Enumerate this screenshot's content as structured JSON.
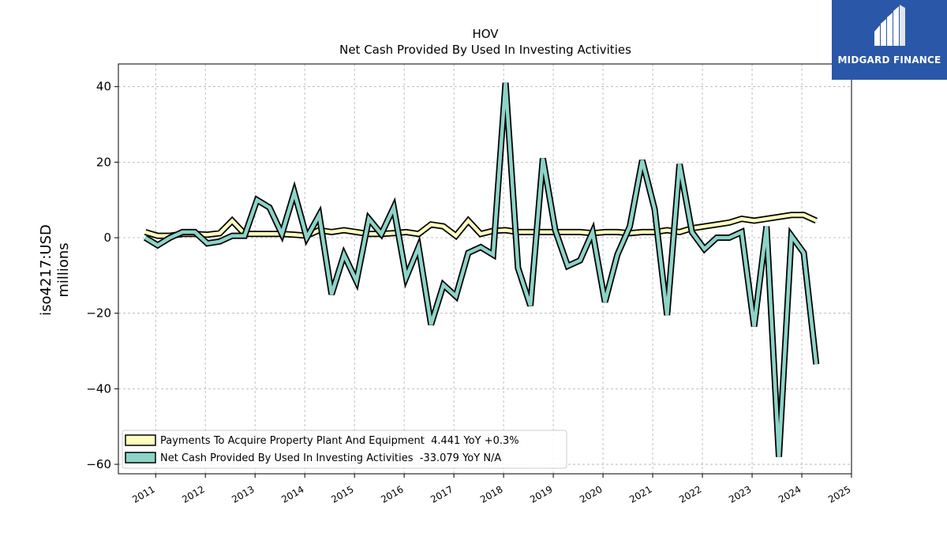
{
  "chart_data": {
    "type": "line",
    "title": "HOV",
    "subtitle": "Net Cash Provided By Used In Investing Activities",
    "ylabel": "iso4217:USD",
    "ylabel2": "millions",
    "xlim": [
      2010.25,
      2025.0
    ],
    "ylim": [
      -62.5,
      46
    ],
    "yticks": [
      -60,
      -40,
      -20,
      0,
      20,
      40
    ],
    "xticks": [
      "2011",
      "2012",
      "2013",
      "2014",
      "2015",
      "2016",
      "2017",
      "2018",
      "2019",
      "2020",
      "2021",
      "2022",
      "2023",
      "2024",
      "2025"
    ],
    "grid": true,
    "legend_position": "lower-left",
    "series": [
      {
        "name": "Payments To Acquire Property Plant And Equipment",
        "legend": "Payments To Acquire Property Plant And Equipment  4.441 YoY +0.3%",
        "color": "#ffffbf",
        "x": [
          2010.79,
          2011.04,
          2011.29,
          2011.54,
          2011.79,
          2012.04,
          2012.29,
          2012.54,
          2012.79,
          2013.04,
          2013.29,
          2013.54,
          2013.79,
          2014.04,
          2014.29,
          2014.54,
          2014.79,
          2015.04,
          2015.29,
          2015.54,
          2015.79,
          2016.04,
          2016.29,
          2016.54,
          2016.79,
          2017.04,
          2017.29,
          2017.54,
          2017.79,
          2018.04,
          2018.29,
          2018.54,
          2018.79,
          2019.04,
          2019.29,
          2019.54,
          2019.79,
          2020.04,
          2020.29,
          2020.54,
          2020.79,
          2021.04,
          2021.29,
          2021.54,
          2021.79,
          2022.04,
          2022.29,
          2022.54,
          2022.79,
          2023.04,
          2023.29,
          2023.54,
          2023.79,
          2024.04,
          2024.29
        ],
        "values": [
          1.5,
          0.5,
          0.5,
          1.0,
          1.0,
          0.8,
          1.2,
          4.5,
          1.0,
          1.0,
          1.0,
          1.0,
          0.8,
          0.5,
          2.0,
          1.5,
          2.0,
          1.5,
          1.0,
          1.0,
          1.2,
          1.5,
          1.0,
          3.5,
          3.0,
          0.5,
          4.5,
          1.0,
          1.8,
          2.0,
          1.5,
          1.5,
          1.5,
          1.5,
          1.5,
          1.5,
          1.2,
          1.5,
          1.5,
          1.2,
          1.5,
          1.5,
          2.0,
          1.5,
          2.5,
          3.0,
          3.5,
          4.0,
          5.0,
          4.5,
          5.0,
          5.5,
          6.0,
          6.0,
          4.5
        ]
      },
      {
        "name": "Net Cash Provided By Used In Investing Activities",
        "legend": "Net Cash Provided By Used In Investing Activities  -33.079 YoY N/A",
        "color": "#8dd3c7",
        "x": [
          2010.79,
          2011.04,
          2011.29,
          2011.54,
          2011.79,
          2012.04,
          2012.29,
          2012.54,
          2012.79,
          2013.04,
          2013.29,
          2013.54,
          2013.79,
          2014.04,
          2014.29,
          2014.54,
          2014.79,
          2015.04,
          2015.29,
          2015.54,
          2015.79,
          2016.04,
          2016.29,
          2016.54,
          2016.79,
          2017.04,
          2017.29,
          2017.54,
          2017.79,
          2018.04,
          2018.29,
          2018.54,
          2018.79,
          2019.04,
          2019.29,
          2019.54,
          2019.79,
          2020.04,
          2020.29,
          2020.54,
          2020.79,
          2021.04,
          2021.29,
          2021.54,
          2021.79,
          2022.04,
          2022.29,
          2022.54,
          2022.79,
          2023.04,
          2023.29,
          2023.54,
          2023.79,
          2024.04,
          2024.29
        ],
        "values": [
          0.0,
          -2.0,
          0.0,
          1.5,
          1.5,
          -1.5,
          -1.0,
          0.5,
          0.5,
          10.0,
          8.0,
          1.0,
          12.0,
          0.0,
          6.0,
          -15.0,
          -4.5,
          -11.5,
          5.0,
          1.0,
          8.0,
          -10.5,
          -2.5,
          -23.0,
          -12.5,
          -15.5,
          -4.0,
          -2.5,
          -4.5,
          41.0,
          -8.0,
          -18.0,
          21.0,
          2.0,
          -7.5,
          -6.0,
          1.5,
          -17.0,
          -4.5,
          3.0,
          20.5,
          7.5,
          -20.5,
          19.5,
          1.5,
          -3.0,
          0.0,
          0.0,
          1.5,
          -23.5,
          3.0,
          -58.0,
          0.5,
          -4.0,
          -33.5
        ]
      }
    ]
  },
  "logo": {
    "text": "MIDGARD FINANCE"
  }
}
